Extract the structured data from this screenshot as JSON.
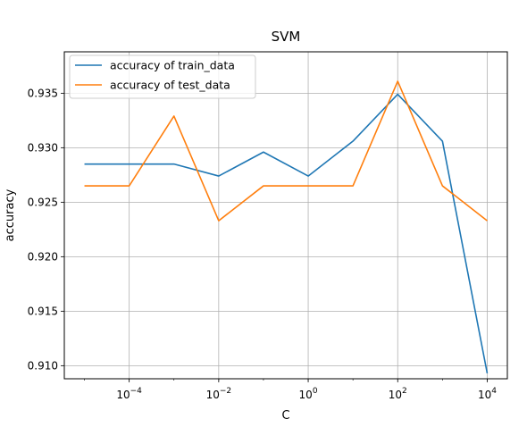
{
  "chart_data": {
    "type": "line",
    "title": "SVM",
    "xlabel": "C",
    "ylabel": "accuracy",
    "xscale": "log",
    "xlim": [
      1e-05,
      10000
    ],
    "ylim": [
      0.9088,
      0.9388
    ],
    "grid": true,
    "legend_position": "top-left",
    "x": [
      1e-05,
      0.0001,
      0.001,
      0.01,
      0.1,
      1,
      10,
      100,
      1000,
      10000
    ],
    "x_ticks": [
      {
        "value": 0.0001,
        "base": "10",
        "exp": "−4"
      },
      {
        "value": 0.01,
        "base": "10",
        "exp": "−2"
      },
      {
        "value": 1,
        "base": "10",
        "exp": "0"
      },
      {
        "value": 100,
        "base": "10",
        "exp": "2"
      },
      {
        "value": 10000,
        "base": "10",
        "exp": "4"
      }
    ],
    "y_ticks": [
      "0.910",
      "0.915",
      "0.920",
      "0.925",
      "0.930",
      "0.935"
    ],
    "series": [
      {
        "name": "accuracy of train_data",
        "color": "#1f77b4",
        "values": [
          0.9285,
          0.9285,
          0.9285,
          0.9274,
          0.9296,
          0.9274,
          0.9306,
          0.9349,
          0.9306,
          0.9093
        ]
      },
      {
        "name": "accuracy of test_data",
        "color": "#ff7f0e",
        "values": [
          0.9265,
          0.9265,
          0.9329,
          0.9233,
          0.9265,
          0.9265,
          0.9265,
          0.9361,
          0.9265,
          0.9233
        ]
      }
    ]
  }
}
